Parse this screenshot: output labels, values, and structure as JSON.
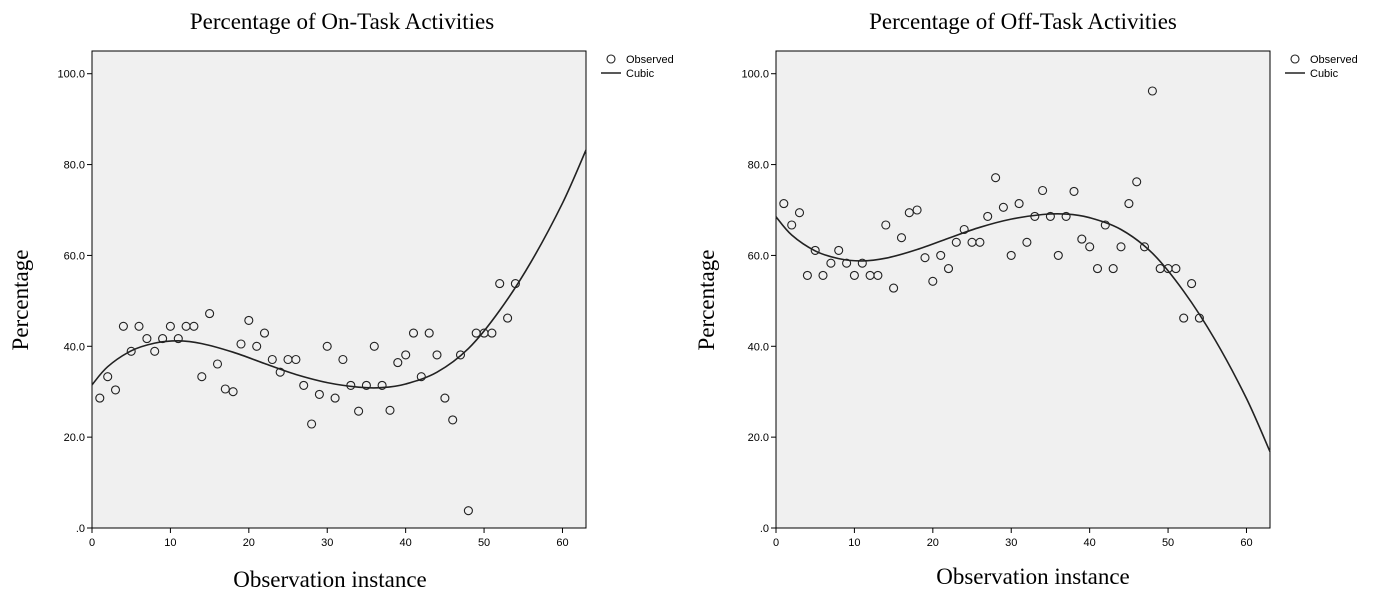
{
  "chart_data": [
    {
      "type": "scatter",
      "title": "Percentage of On-Task Activities",
      "xlabel": "Observation instance",
      "ylabel": "Percentage",
      "xlim": [
        0,
        63
      ],
      "ylim": [
        0,
        105
      ],
      "xticks": [
        0,
        10,
        20,
        30,
        40,
        50,
        60
      ],
      "xtick_labels": [
        "0",
        "10",
        "20",
        "30",
        "40",
        "50",
        "60"
      ],
      "yticks": [
        0,
        20,
        40,
        60,
        80,
        100
      ],
      "ytick_labels": [
        ".0",
        "20.0",
        "40.0",
        "60.0",
        "80.0",
        "100.0"
      ],
      "grid": false,
      "legend": {
        "position": "top-right",
        "entries": [
          "Observed",
          "Cubic"
        ]
      },
      "series": [
        {
          "name": "Observed",
          "marker": "circle",
          "points": [
            [
              1,
              28.6
            ],
            [
              2,
              33.3
            ],
            [
              3,
              30.4
            ],
            [
              4,
              44.4
            ],
            [
              5,
              38.9
            ],
            [
              6,
              44.4
            ],
            [
              7,
              41.7
            ],
            [
              8,
              38.9
            ],
            [
              9,
              41.7
            ],
            [
              10,
              44.4
            ],
            [
              11,
              41.7
            ],
            [
              12,
              44.4
            ],
            [
              13,
              44.4
            ],
            [
              14,
              33.3
            ],
            [
              15,
              47.2
            ],
            [
              16,
              36.1
            ],
            [
              17,
              30.6
            ],
            [
              18,
              30.0
            ],
            [
              19,
              40.5
            ],
            [
              20,
              45.7
            ],
            [
              21,
              40.0
            ],
            [
              22,
              42.9
            ],
            [
              23,
              37.1
            ],
            [
              24,
              34.3
            ],
            [
              25,
              37.1
            ],
            [
              26,
              37.1
            ],
            [
              27,
              31.4
            ],
            [
              28,
              22.9
            ],
            [
              29,
              29.4
            ],
            [
              30,
              40.0
            ],
            [
              31,
              28.6
            ],
            [
              32,
              37.1
            ],
            [
              33,
              31.4
            ],
            [
              34,
              25.7
            ],
            [
              35,
              31.4
            ],
            [
              36,
              40.0
            ],
            [
              37,
              31.4
            ],
            [
              38,
              25.9
            ],
            [
              39,
              36.4
            ],
            [
              40,
              38.1
            ],
            [
              41,
              42.9
            ],
            [
              42,
              33.3
            ],
            [
              43,
              42.9
            ],
            [
              44,
              38.1
            ],
            [
              45,
              28.6
            ],
            [
              46,
              23.8
            ],
            [
              47,
              38.1
            ],
            [
              48,
              3.8
            ],
            [
              49,
              42.9
            ],
            [
              50,
              42.9
            ],
            [
              51,
              42.9
            ],
            [
              52,
              53.8
            ],
            [
              53,
              46.2
            ],
            [
              54,
              53.8
            ]
          ]
        },
        {
          "name": "Cubic",
          "curve": [
            [
              0,
              31.5
            ],
            [
              2,
              35.5
            ],
            [
              5,
              39.0
            ],
            [
              8,
              40.7
            ],
            [
              11,
              41.2
            ],
            [
              14,
              40.6
            ],
            [
              18,
              38.7
            ],
            [
              22,
              36.2
            ],
            [
              26,
              33.8
            ],
            [
              30,
              32.0
            ],
            [
              34,
              31.0
            ],
            [
              37,
              30.9
            ],
            [
              40,
              31.7
            ],
            [
              44,
              34.3
            ],
            [
              48,
              39.5
            ],
            [
              52,
              47.9
            ],
            [
              56,
              58.6
            ],
            [
              60,
              71.5
            ],
            [
              63,
              83.2
            ]
          ]
        }
      ]
    },
    {
      "type": "scatter",
      "title": "Percentage of Off-Task Activities",
      "xlabel": "Observation instance",
      "ylabel": "Percentage",
      "xlim": [
        0,
        63
      ],
      "ylim": [
        0,
        105
      ],
      "xticks": [
        0,
        10,
        20,
        30,
        40,
        50,
        60
      ],
      "xtick_labels": [
        "0",
        "10",
        "20",
        "30",
        "40",
        "50",
        "60"
      ],
      "yticks": [
        0,
        20,
        40,
        60,
        80,
        100
      ],
      "ytick_labels": [
        ".0",
        "20.0",
        "40.0",
        "60.0",
        "80.0",
        "100.0"
      ],
      "grid": false,
      "legend": {
        "position": "top-right",
        "entries": [
          "Observed",
          "Cubic"
        ]
      },
      "series": [
        {
          "name": "Observed",
          "marker": "circle",
          "points": [
            [
              1,
              71.4
            ],
            [
              2,
              66.7
            ],
            [
              3,
              69.4
            ],
            [
              4,
              55.6
            ],
            [
              5,
              61.1
            ],
            [
              6,
              55.6
            ],
            [
              7,
              58.3
            ],
            [
              8,
              61.1
            ],
            [
              9,
              58.3
            ],
            [
              10,
              55.6
            ],
            [
              11,
              58.3
            ],
            [
              12,
              55.6
            ],
            [
              13,
              55.6
            ],
            [
              14,
              66.7
            ],
            [
              15,
              52.8
            ],
            [
              16,
              63.9
            ],
            [
              17,
              69.4
            ],
            [
              18,
              70.0
            ],
            [
              19,
              59.5
            ],
            [
              20,
              54.3
            ],
            [
              21,
              60.0
            ],
            [
              22,
              57.1
            ],
            [
              23,
              62.9
            ],
            [
              24,
              65.7
            ],
            [
              25,
              62.9
            ],
            [
              26,
              62.9
            ],
            [
              27,
              68.6
            ],
            [
              28,
              77.1
            ],
            [
              29,
              70.6
            ],
            [
              30,
              60.0
            ],
            [
              31,
              71.4
            ],
            [
              32,
              62.9
            ],
            [
              33,
              68.6
            ],
            [
              34,
              74.3
            ],
            [
              35,
              68.6
            ],
            [
              36,
              60.0
            ],
            [
              37,
              68.6
            ],
            [
              38,
              74.1
            ],
            [
              39,
              63.6
            ],
            [
              40,
              61.9
            ],
            [
              41,
              57.1
            ],
            [
              42,
              66.7
            ],
            [
              43,
              57.1
            ],
            [
              44,
              61.9
            ],
            [
              45,
              71.4
            ],
            [
              46,
              76.2
            ],
            [
              47,
              61.9
            ],
            [
              48,
              96.2
            ],
            [
              49,
              57.1
            ],
            [
              50,
              57.1
            ],
            [
              51,
              57.1
            ],
            [
              52,
              46.2
            ],
            [
              53,
              53.8
            ],
            [
              54,
              46.2
            ]
          ]
        },
        {
          "name": "Cubic",
          "curve": [
            [
              0,
              68.5
            ],
            [
              2,
              64.5
            ],
            [
              5,
              61.0
            ],
            [
              8,
              59.3
            ],
            [
              11,
              58.8
            ],
            [
              14,
              59.4
            ],
            [
              18,
              61.3
            ],
            [
              22,
              63.8
            ],
            [
              26,
              66.2
            ],
            [
              30,
              68.0
            ],
            [
              34,
              69.0
            ],
            [
              37,
              69.1
            ],
            [
              40,
              68.3
            ],
            [
              44,
              65.7
            ],
            [
              48,
              60.5
            ],
            [
              52,
              52.1
            ],
            [
              56,
              41.4
            ],
            [
              60,
              28.5
            ],
            [
              63,
              16.8
            ]
          ]
        }
      ]
    }
  ]
}
